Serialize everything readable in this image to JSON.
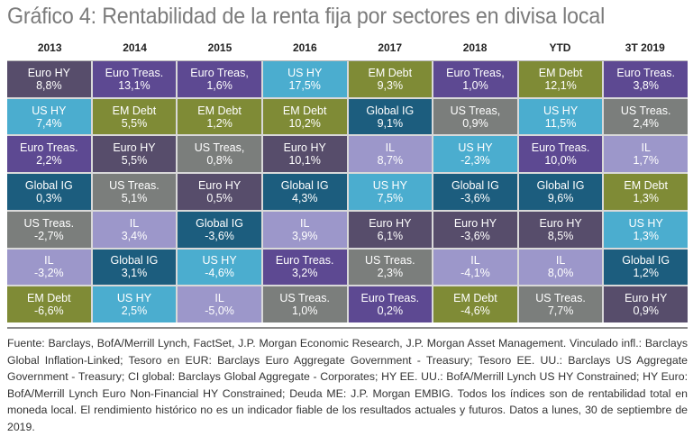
{
  "title": "Gráfico 4: Rentabilidad de la renta fija por sectores en divisa local",
  "footnote": "Fuente: Barclays, BofA/Merrill Lynch, FactSet, J.P. Morgan Economic Research, J.P. Morgan Asset Management. Vinculado infl.: Barclays Global Inflation-Linked; Tesoro en EUR:  Barclays Euro Aggregate Government - Treasury; Tesoro EE. UU.: Barclays US Aggregate Government - Treasury; CI global: Barclays Global Aggregate - Corporates; HY EE. UU.: BofA/Merrill Lynch US HY Constrained; HY Euro: BofA/Merrill Lynch Euro Non-Financial HY Constrained; Deuda ME: J.P. Morgan EMBIG. Todos los índices son de rentabilidad total en moneda local. El rendimiento histórico no es un indicador fiable de los resultados actuales y futuros. Datos a lunes, 30 de septiembre de 2019.",
  "sector_colors": {
    "Euro HY": "#574d6b",
    "Euro Treas.": "#5d4992",
    "US HY": "#4badcf",
    "EM Debt": "#7f8b36",
    "Global IG": "#1c5d7e",
    "US Treas.": "#7b7e7c",
    "IL": "#9c97ca"
  },
  "chart_data": {
    "type": "table",
    "title": "Gráfico 4: Rentabilidad de la renta fija por sectores en divisa local",
    "description": "Quilt chart ranking fixed income sector returns (local currency) per period, best to worst",
    "columns": [
      "2013",
      "2014",
      "2015",
      "2016",
      "2017",
      "2018",
      "YTD",
      "3T 2019"
    ],
    "rows": [
      [
        {
          "sector": "Euro HY",
          "label": "Euro HY",
          "value": "8,8%"
        },
        {
          "sector": "Euro Treas.",
          "label": "Euro Treas.",
          "value": "13,1%"
        },
        {
          "sector": "Euro Treas.",
          "label": "Euro Treas,",
          "value": "1,6%"
        },
        {
          "sector": "US HY",
          "label": "US HY",
          "value": "17,5%"
        },
        {
          "sector": "EM Debt",
          "label": "EM Debt",
          "value": "9,3%"
        },
        {
          "sector": "Euro Treas.",
          "label": "Euro Treas,",
          "value": "1,0%"
        },
        {
          "sector": "EM Debt",
          "label": "EM Debt",
          "value": "12,1%"
        },
        {
          "sector": "Euro Treas.",
          "label": "Euro Treas.",
          "value": "3,8%"
        }
      ],
      [
        {
          "sector": "US HY",
          "label": "US HY",
          "value": "7,4%"
        },
        {
          "sector": "EM Debt",
          "label": "EM Debt",
          "value": "5,5%"
        },
        {
          "sector": "EM Debt",
          "label": "EM Debt",
          "value": "1,2%"
        },
        {
          "sector": "EM Debt",
          "label": "EM Debt",
          "value": "10,2%"
        },
        {
          "sector": "Global IG",
          "label": "Global IG",
          "value": "9,1%"
        },
        {
          "sector": "US Treas.",
          "label": "US Treas,",
          "value": "0,9%"
        },
        {
          "sector": "US HY",
          "label": "US HY",
          "value": "11,5%"
        },
        {
          "sector": "US Treas.",
          "label": "US Treas.",
          "value": "2,4%"
        }
      ],
      [
        {
          "sector": "Euro Treas.",
          "label": "Euro Treas.",
          "value": "2,2%"
        },
        {
          "sector": "Euro HY",
          "label": "Euro HY",
          "value": "5,5%"
        },
        {
          "sector": "US Treas.",
          "label": "US Treas,",
          "value": "0,8%"
        },
        {
          "sector": "Euro HY",
          "label": "Euro HY",
          "value": "10,1%"
        },
        {
          "sector": "IL",
          "label": "IL",
          "value": "8,7%"
        },
        {
          "sector": "US HY",
          "label": "US HY",
          "value": "-2,3%"
        },
        {
          "sector": "Euro Treas.",
          "label": "Euro Treas.",
          "value": "10,0%"
        },
        {
          "sector": "IL",
          "label": "IL",
          "value": "1,7%"
        }
      ],
      [
        {
          "sector": "Global IG",
          "label": "Global IG",
          "value": "0,3%"
        },
        {
          "sector": "US Treas.",
          "label": "US Treas.",
          "value": "5,1%"
        },
        {
          "sector": "Euro HY",
          "label": "Euro HY",
          "value": "0,5%"
        },
        {
          "sector": "Global IG",
          "label": "Global IG",
          "value": "4,3%"
        },
        {
          "sector": "US HY",
          "label": "US HY",
          "value": "7,5%"
        },
        {
          "sector": "Global IG",
          "label": "Global IG",
          "value": "-3,6%"
        },
        {
          "sector": "Global IG",
          "label": "Global IG",
          "value": "9,6%"
        },
        {
          "sector": "EM Debt",
          "label": "EM Debt",
          "value": "1,3%"
        }
      ],
      [
        {
          "sector": "US Treas.",
          "label": "US Treas.",
          "value": "-2,7%"
        },
        {
          "sector": "IL",
          "label": "IL",
          "value": "3,4%"
        },
        {
          "sector": "Global IG",
          "label": "Global IG",
          "value": "-3,6%"
        },
        {
          "sector": "IL",
          "label": "IL",
          "value": "3,9%"
        },
        {
          "sector": "Euro HY",
          "label": "Euro HY",
          "value": "6,1%"
        },
        {
          "sector": "Euro HY",
          "label": "Euro HY",
          "value": "-3,6%"
        },
        {
          "sector": "Euro HY",
          "label": "Euro HY",
          "value": "8,5%"
        },
        {
          "sector": "US HY",
          "label": "US HY",
          "value": "1,3%"
        }
      ],
      [
        {
          "sector": "IL",
          "label": "IL",
          "value": "-3,2%"
        },
        {
          "sector": "Global IG",
          "label": "Global IG",
          "value": "3,1%"
        },
        {
          "sector": "US HY",
          "label": "US HY",
          "value": "-4,6%"
        },
        {
          "sector": "Euro Treas.",
          "label": "Euro Treas.",
          "value": "3,2%"
        },
        {
          "sector": "US Treas.",
          "label": "US Treas.",
          "value": "2,3%"
        },
        {
          "sector": "IL",
          "label": "IL",
          "value": "-4,1%"
        },
        {
          "sector": "IL",
          "label": "IL",
          "value": "8,0%"
        },
        {
          "sector": "Global IG",
          "label": "Global IG",
          "value": "1,2%"
        }
      ],
      [
        {
          "sector": "EM Debt",
          "label": "EM Debt",
          "value": "-6,6%"
        },
        {
          "sector": "US HY",
          "label": "US HY",
          "value": "2,5%"
        },
        {
          "sector": "IL",
          "label": "IL",
          "value": "-5,0%"
        },
        {
          "sector": "US Treas.",
          "label": "US Treas.",
          "value": "1,0%"
        },
        {
          "sector": "Euro Treas.",
          "label": "Euro Treas.",
          "value": "0,2%"
        },
        {
          "sector": "EM Debt",
          "label": "EM Debt",
          "value": "-4,6%"
        },
        {
          "sector": "US Treas.",
          "label": "US Treas.",
          "value": "7,7%"
        },
        {
          "sector": "Euro HY",
          "label": "Euro HY",
          "value": "0,9%"
        }
      ]
    ]
  }
}
